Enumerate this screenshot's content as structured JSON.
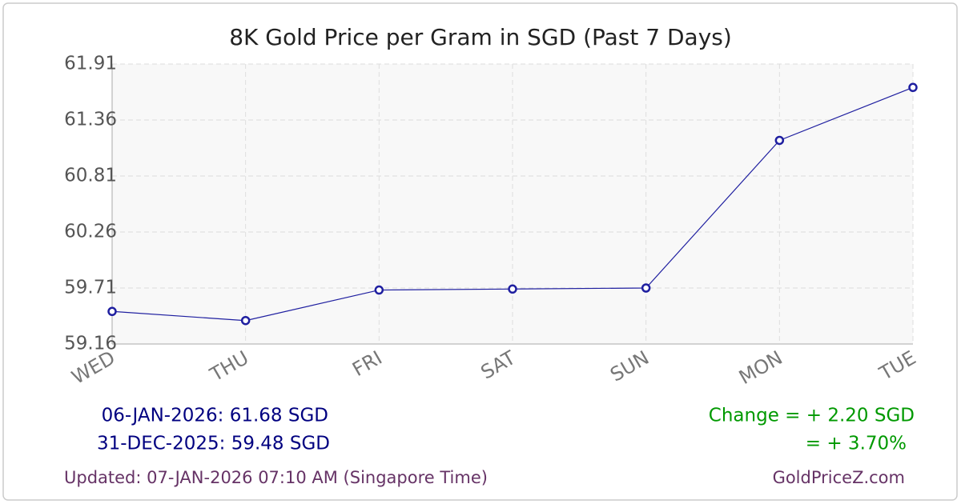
{
  "chart_data": {
    "type": "line",
    "title": "8K Gold Price per Gram in SGD (Past 7 Days)",
    "categories": [
      "WED",
      "THU",
      "FRI",
      "SAT",
      "SUN",
      "MON",
      "TUE"
    ],
    "values": [
      59.48,
      59.39,
      59.69,
      59.7,
      59.71,
      61.16,
      61.68
    ],
    "color": "#1f1fa0",
    "ylim": [
      59.16,
      61.91
    ],
    "yticks": [
      59.16,
      59.71,
      60.26,
      60.81,
      61.36,
      61.91
    ],
    "grid": true,
    "annotations": [
      "06-JAN-2026: 61.68 SGD",
      "31-DEC-2025: 59.48 SGD",
      "Change = + 2.20 SGD",
      "= + 3.70%",
      "Updated: 07-JAN-2026 07:10 AM (Singapore Time)",
      "GoldPriceZ.com"
    ]
  }
}
